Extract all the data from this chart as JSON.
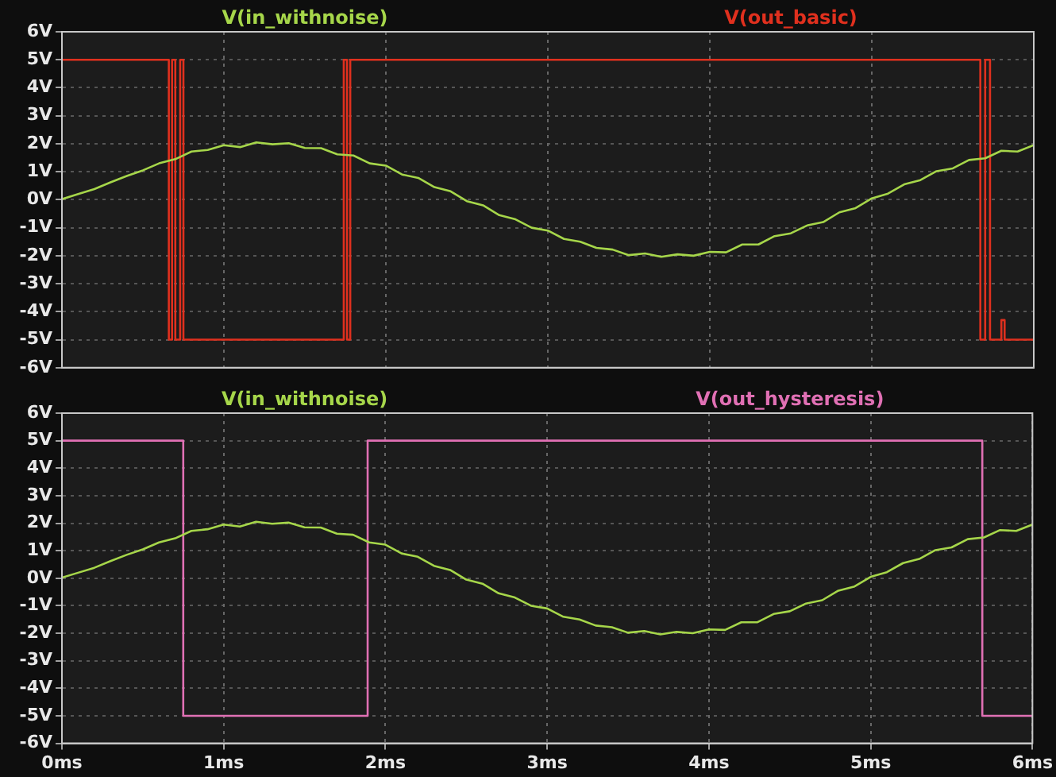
{
  "chart_data": [
    {
      "type": "line",
      "xlim": [
        0,
        6
      ],
      "xticks": [
        0,
        1,
        2,
        3,
        4,
        5,
        6
      ],
      "ylim": [
        -6,
        6
      ],
      "yticks": [
        {
          "value": 6,
          "label": "6V"
        },
        {
          "value": 5,
          "label": "5V"
        },
        {
          "value": 4,
          "label": "4V"
        },
        {
          "value": 3,
          "label": "3V"
        },
        {
          "value": 2,
          "label": "2V"
        },
        {
          "value": 1,
          "label": "1V"
        },
        {
          "value": 0,
          "label": "0V"
        },
        {
          "value": -1,
          "label": "-1V"
        },
        {
          "value": -2,
          "label": "-2V"
        },
        {
          "value": -3,
          "label": "-3V"
        },
        {
          "value": -4,
          "label": "-4V"
        },
        {
          "value": -5,
          "label": "-5V"
        },
        {
          "value": -6,
          "label": "-6V"
        }
      ],
      "tick_labels": "y",
      "grid": true,
      "legend": "top",
      "marker": "none",
      "line_style": "solid",
      "series": [
        {
          "name": "V(in_withnoise)",
          "color": "#a6d64a",
          "x": [
            0,
            0.1,
            0.2,
            0.3,
            0.4,
            0.5,
            0.6,
            0.7,
            0.8,
            0.9,
            1.0,
            1.1,
            1.2,
            1.3,
            1.4,
            1.5,
            1.6,
            1.7,
            1.8,
            1.9,
            2.0,
            2.1,
            2.2,
            2.3,
            2.4,
            2.5,
            2.6,
            2.7,
            2.8,
            2.9,
            3.0,
            3.1,
            3.2,
            3.3,
            3.4,
            3.5,
            3.6,
            3.7,
            3.8,
            3.9,
            4.0,
            4.1,
            4.2,
            4.3,
            4.4,
            4.5,
            4.6,
            4.7,
            4.8,
            4.9,
            5.0,
            5.1,
            5.2,
            5.3,
            5.4,
            5.5,
            5.6,
            5.7,
            5.8,
            5.9,
            6.0
          ],
          "values": [
            0.02,
            0.2,
            0.38,
            0.62,
            0.85,
            1.05,
            1.3,
            1.45,
            1.72,
            1.78,
            1.95,
            1.88,
            2.05,
            1.98,
            2.02,
            1.85,
            1.84,
            1.62,
            1.58,
            1.3,
            1.22,
            0.9,
            0.78,
            0.45,
            0.3,
            -0.05,
            -0.2,
            -0.55,
            -0.7,
            -1.0,
            -1.1,
            -1.4,
            -1.5,
            -1.72,
            -1.78,
            -1.98,
            -1.92,
            -2.04,
            -1.95,
            -2.0,
            -1.86,
            -1.88,
            -1.6,
            -1.6,
            -1.3,
            -1.2,
            -0.92,
            -0.8,
            -0.45,
            -0.3,
            0.05,
            0.22,
            0.55,
            0.7,
            1.02,
            1.12,
            1.42,
            1.48,
            1.75,
            1.72,
            1.95
          ]
        },
        {
          "name": "V(out_basic)",
          "type": "step",
          "color": "#e0301e",
          "x": [
            0,
            0.66,
            0.68,
            0.7,
            0.73,
            0.75,
            1.74,
            1.76,
            1.78,
            5.67,
            5.7,
            5.73,
            5.8,
            5.82,
            6
          ],
          "values": [
            5,
            -5,
            5,
            -5,
            5,
            -5,
            5,
            -5,
            5,
            -5,
            5,
            -5,
            -4.3,
            -5,
            -5
          ]
        }
      ]
    },
    {
      "type": "line",
      "xlim": [
        0,
        6
      ],
      "xticks": [
        {
          "value": 0,
          "label": "0ms"
        },
        {
          "value": 1,
          "label": "1ms"
        },
        {
          "value": 2,
          "label": "2ms"
        },
        {
          "value": 3,
          "label": "3ms"
        },
        {
          "value": 4,
          "label": "4ms"
        },
        {
          "value": 5,
          "label": "5ms"
        },
        {
          "value": 6,
          "label": "6ms"
        }
      ],
      "ylim": [
        -6,
        6
      ],
      "yticks": [
        {
          "value": 6,
          "label": "6V"
        },
        {
          "value": 5,
          "label": "5V"
        },
        {
          "value": 4,
          "label": "4V"
        },
        {
          "value": 3,
          "label": "3V"
        },
        {
          "value": 2,
          "label": "2V"
        },
        {
          "value": 1,
          "label": "1V"
        },
        {
          "value": 0,
          "label": "0V"
        },
        {
          "value": -1,
          "label": "-1V"
        },
        {
          "value": -2,
          "label": "-2V"
        },
        {
          "value": -3,
          "label": "-3V"
        },
        {
          "value": -4,
          "label": "-4V"
        },
        {
          "value": -5,
          "label": "-5V"
        },
        {
          "value": -6,
          "label": "-6V"
        }
      ],
      "grid": true,
      "legend": "top",
      "marker": "none",
      "line_style": "solid",
      "series": [
        {
          "name": "V(in_withnoise)",
          "color": "#a6d64a",
          "x": [
            0,
            0.1,
            0.2,
            0.3,
            0.4,
            0.5,
            0.6,
            0.7,
            0.8,
            0.9,
            1.0,
            1.1,
            1.2,
            1.3,
            1.4,
            1.5,
            1.6,
            1.7,
            1.8,
            1.9,
            2.0,
            2.1,
            2.2,
            2.3,
            2.4,
            2.5,
            2.6,
            2.7,
            2.8,
            2.9,
            3.0,
            3.1,
            3.2,
            3.3,
            3.4,
            3.5,
            3.6,
            3.7,
            3.8,
            3.9,
            4.0,
            4.1,
            4.2,
            4.3,
            4.4,
            4.5,
            4.6,
            4.7,
            4.8,
            4.9,
            5.0,
            5.1,
            5.2,
            5.3,
            5.4,
            5.5,
            5.6,
            5.7,
            5.8,
            5.9,
            6.0
          ],
          "values": [
            0.02,
            0.2,
            0.38,
            0.62,
            0.85,
            1.05,
            1.3,
            1.45,
            1.72,
            1.78,
            1.95,
            1.88,
            2.05,
            1.98,
            2.02,
            1.85,
            1.84,
            1.62,
            1.58,
            1.3,
            1.22,
            0.9,
            0.78,
            0.45,
            0.3,
            -0.05,
            -0.2,
            -0.55,
            -0.7,
            -1.0,
            -1.1,
            -1.4,
            -1.5,
            -1.72,
            -1.78,
            -1.98,
            -1.92,
            -2.04,
            -1.95,
            -2.0,
            -1.86,
            -1.88,
            -1.6,
            -1.6,
            -1.3,
            -1.2,
            -0.92,
            -0.8,
            -0.45,
            -0.3,
            0.05,
            0.22,
            0.55,
            0.7,
            1.02,
            1.12,
            1.42,
            1.48,
            1.75,
            1.72,
            1.95
          ]
        },
        {
          "name": "V(out_hysteresis)",
          "type": "step",
          "color": "#e070b4",
          "x": [
            0,
            0.75,
            1.89,
            5.69,
            6
          ],
          "values": [
            5,
            -5,
            5,
            -5,
            -5
          ]
        }
      ]
    }
  ]
}
